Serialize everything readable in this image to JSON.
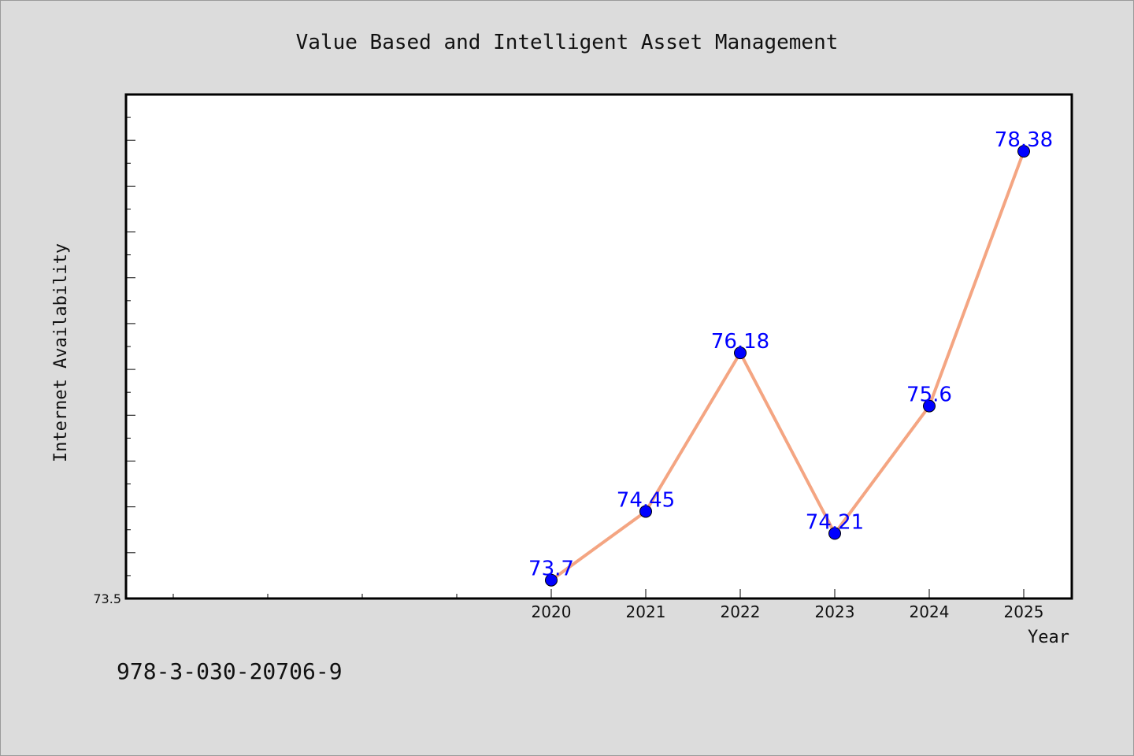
{
  "chart_data": {
    "type": "line",
    "title": "Value Based and Intelligent Asset Management",
    "xlabel": "Year",
    "ylabel": "Internet Availability",
    "x": [
      "2020",
      "2021",
      "2022",
      "2023",
      "2024",
      "2025"
    ],
    "values": [
      73.7,
      74.45,
      76.18,
      74.21,
      75.6,
      78.38
    ],
    "data_labels": [
      "73.7",
      "74.45",
      "76.18",
      "74.21",
      "75.6",
      "78.38"
    ],
    "y_tick_labels": [
      "73.5"
    ],
    "ylim": [
      73.5,
      79.0
    ],
    "xlim_slots": [
      -4,
      5
    ],
    "grid": false,
    "line_color": "#f4a582",
    "marker_color": "#0000ff",
    "label_color": "#0000ff",
    "plot_background": "#ffffff",
    "figure_background": "#dcdcdc"
  },
  "footer": {
    "isbn": "978-3-030-20706-9"
  }
}
